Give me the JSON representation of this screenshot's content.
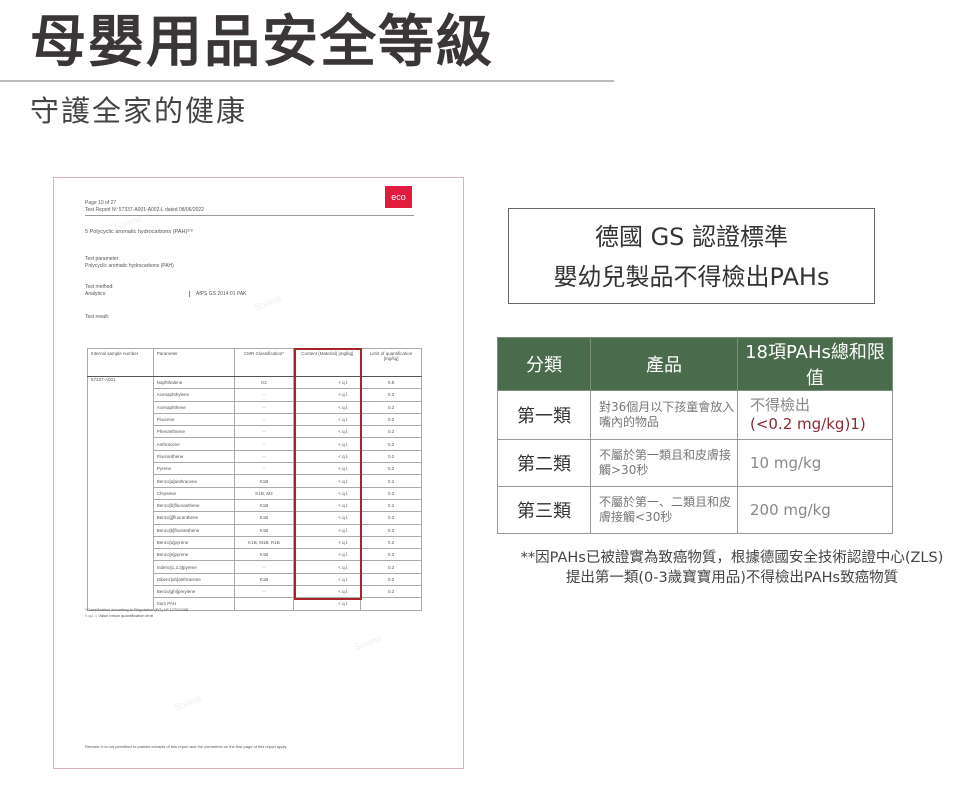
{
  "header": {
    "title": "母嬰用品安全等級",
    "subtitle": "守護全家的健康"
  },
  "report": {
    "logo": "eco",
    "page": "Page 10 of 27",
    "report_no": "Test Report Nº 57337-A001-A002-L dated 08/06/2022",
    "section": "5    Polycyclic aromatic hydrocarbons (PAH)²⁾⁸",
    "test_parameter_label": "Test parameter:",
    "test_parameter": "Polycyclic aromatic hydrocarbons (PAH)",
    "test_method_label": "Test method:",
    "analytics_label": "Analytics:",
    "analytics": "AfPS GS 2014:01 PAK",
    "test_result_label": "Test result:",
    "columns": [
      "Internal sample number",
      "Parameter",
      "CMR-Classification*",
      "Content (Material) [mg/kg]",
      "Limit of quantification [mg/kg]"
    ],
    "sample": "57337-A001",
    "rows": [
      [
        "Naphthalene",
        "K2",
        "< q.l.",
        "0.5"
      ],
      [
        "Acenaphthylene",
        "-",
        "< q.l.",
        "0.2"
      ],
      [
        "Acenaphthene",
        "-",
        "< q.l.",
        "0.2"
      ],
      [
        "Fluorene",
        "-",
        "< q.l.",
        "0.2"
      ],
      [
        "Phenanthrene",
        "-",
        "< q.l.",
        "0.2"
      ],
      [
        "Anthracene",
        "-",
        "< q.l.",
        "0.2"
      ],
      [
        "Fluoranthene",
        "-",
        "< q.l.",
        "0.2"
      ],
      [
        "Pyrene",
        "-",
        "< q.l.",
        "0.2"
      ],
      [
        "Benzo[a]anthracene",
        "K1B",
        "< q.l.",
        "0.2"
      ],
      [
        "Chrysene",
        "K1B, M2",
        "< q.l.",
        "0.2"
      ],
      [
        "Benzo[b]fluoranthene",
        "K1B",
        "< q.l.",
        "0.2"
      ],
      [
        "Benzo[j]fluoranthene",
        "K1B",
        "< q.l.",
        "0.2"
      ],
      [
        "Benzo[k]fluoranthene",
        "K1B",
        "< q.l.",
        "0.2"
      ],
      [
        "Benzo[a]pyrene",
        "K1B, M1B, R1B",
        "< q.l.",
        "0.2"
      ],
      [
        "Benzo[e]pyrene",
        "K1B",
        "< q.l.",
        "0.2"
      ],
      [
        "Indeno[1,2,3]pyrene",
        "-",
        "< q.l.",
        "0.2"
      ],
      [
        "Dibenz[ah]anthracene",
        "K1B",
        "< q.l.",
        "0.2"
      ],
      [
        "Benzo[ghi]perylene",
        "-",
        "< q.l.",
        "0.2"
      ],
      [
        "Sum PAH",
        "",
        "< q.l.",
        ""
      ]
    ],
    "footnote1": "*Classification according to Regulation (EG) Nº 1272/2008",
    "footnote2": "< q.l. = Value below quantification limit",
    "remark": "Remark: It is not permitted to publish extracts of this report and the comments on the first page of this report apply.",
    "watermark": "Sonmil"
  },
  "gs": {
    "line1": "德國 GS 認證標準",
    "line2": "嬰幼兒製品不得檢出PAHs"
  },
  "classification": {
    "headers": [
      "分類",
      "產品",
      "18項PAHs總和限值"
    ],
    "rows": [
      {
        "category": "第一類",
        "product": "對36個月以下孩童會放入嘴內的物品",
        "limit": "不得檢出",
        "limit_note": "(<0.2 mg/kg)1)"
      },
      {
        "category": "第二類",
        "product": "不屬於第一類且和皮膚接觸>30秒",
        "limit": "10 mg/kg"
      },
      {
        "category": "第三類",
        "product": "不屬於第一、二類且和皮膚接觸<30秒",
        "limit": "200 mg/kg"
      }
    ],
    "header_color": "#4a6b4c"
  },
  "note": {
    "line1": "**因PAHs已被證實為致癌物質，根據德國安全技術認證中心(ZLS)",
    "line2": "提出第一類(0-3歲寶寶用品)不得檢出PAHs致癌物質"
  }
}
